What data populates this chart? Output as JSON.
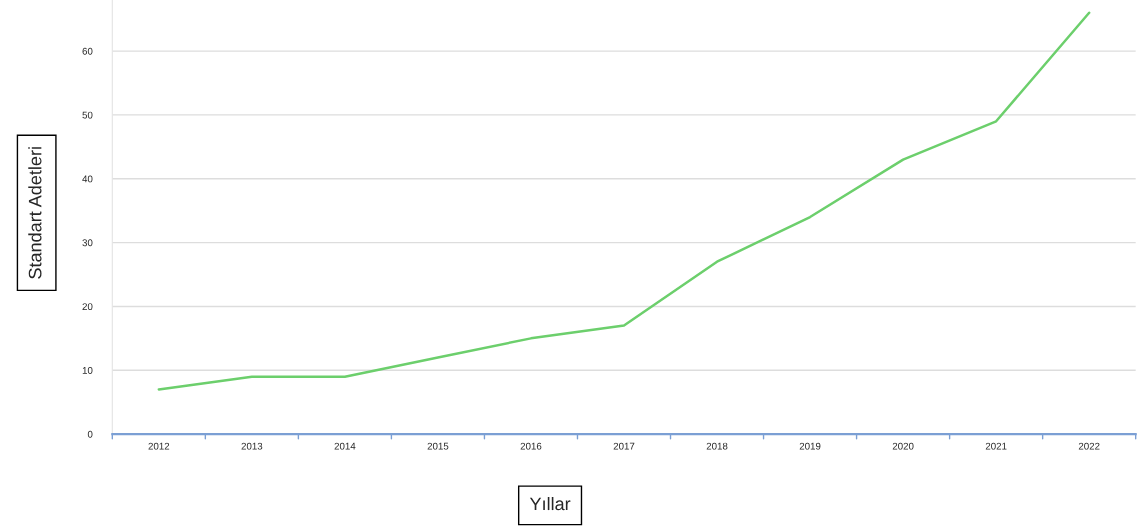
{
  "chart_data": {
    "type": "line",
    "xlabel": "Yıllar",
    "ylabel": "Standart Adetleri",
    "categories": [
      "2012",
      "2013",
      "2014",
      "2015",
      "2016",
      "2017",
      "2018",
      "2019",
      "2020",
      "2021",
      "2022"
    ],
    "series": [
      {
        "color": "#6ccf6c",
        "values": [
          7,
          9,
          9,
          12,
          15,
          17,
          27,
          34,
          43,
          49,
          66
        ]
      }
    ],
    "ylim": [
      0,
      68
    ],
    "yticks": [
      0,
      10,
      20,
      30,
      40,
      50,
      60
    ],
    "grid": "y",
    "legend": false,
    "marker": "none",
    "line_style": "solid"
  }
}
